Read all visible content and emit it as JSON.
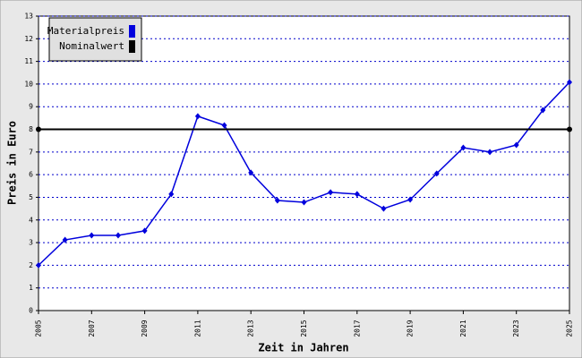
{
  "chart_data": {
    "type": "line",
    "x_label": "Zeit in Jahren",
    "y_label": "Preis in Euro",
    "x": [
      2005,
      2006,
      2007,
      2008,
      2009,
      2010,
      2011,
      2012,
      2013,
      2014,
      2015,
      2016,
      2017,
      2018,
      2019,
      2020,
      2021,
      2022,
      2023,
      2024,
      2025
    ],
    "series": [
      {
        "name": "Materialpreis",
        "color": "#0000dd",
        "values": [
          2.0,
          3.12,
          3.32,
          3.32,
          3.52,
          5.14,
          8.58,
          8.18,
          6.09,
          4.86,
          4.78,
          5.22,
          5.14,
          4.5,
          4.9,
          6.05,
          7.19,
          7.0,
          7.31,
          8.85,
          10.08
        ]
      },
      {
        "name": "Nominalwert",
        "color": "#000000",
        "x": [
          2005,
          2025
        ],
        "values": [
          8,
          8
        ]
      }
    ],
    "xlim": [
      2005,
      2025
    ],
    "xticks": [
      2005,
      2007,
      2009,
      2011,
      2013,
      2015,
      2017,
      2019,
      2021,
      2023,
      2025
    ],
    "ylim": [
      0,
      13
    ],
    "yticks": [
      0,
      1,
      2,
      3,
      4,
      5,
      6,
      7,
      8,
      9,
      10,
      11,
      12,
      13
    ],
    "grid": true,
    "legend": "top-left"
  }
}
